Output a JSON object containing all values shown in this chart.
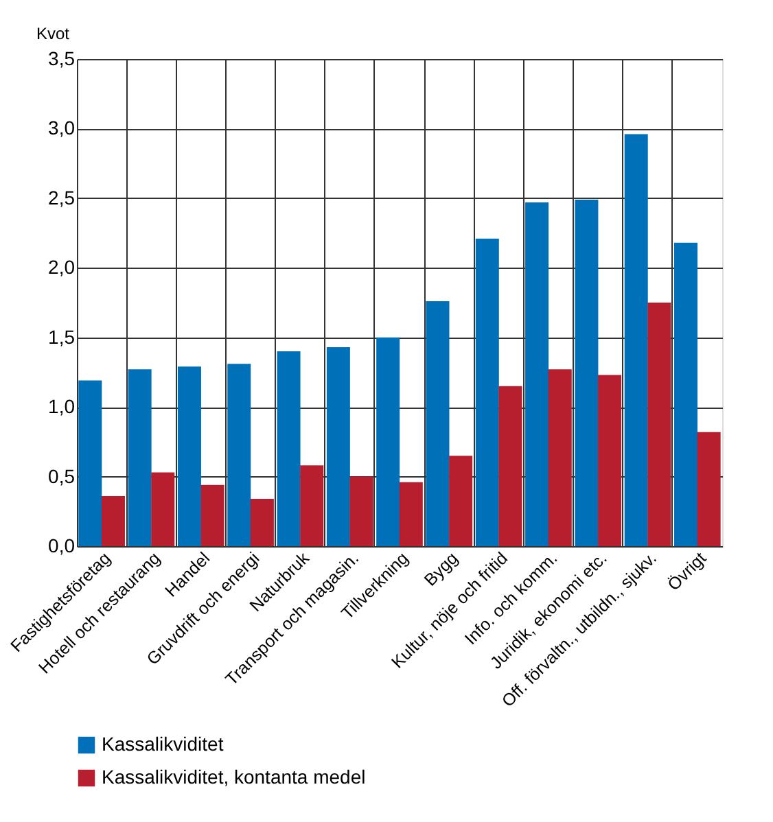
{
  "chart_data": {
    "type": "bar",
    "ylabel": "Kvot",
    "categories": [
      "Fastighetsföretag",
      "Hotell och restaurang",
      "Handel",
      "Gruvdrift och energi",
      "Naturbruk",
      "Transport och magasin.",
      "Tillverkning",
      "Bygg",
      "Kultur, nöje och fritid",
      "Info. och komm.",
      "Juridik, ekonomi etc.",
      "Off. förvaltn., utbildn., sjukv.",
      "Övrigt"
    ],
    "series": [
      {
        "name": "Kassalikviditet",
        "color": "#0070b8",
        "values": [
          1.19,
          1.27,
          1.29,
          1.31,
          1.4,
          1.43,
          1.5,
          1.76,
          2.21,
          2.47,
          2.49,
          2.96,
          2.18
        ]
      },
      {
        "name": "Kassalikviditet, kontanta medel",
        "color": "#b81f2e",
        "values": [
          0.36,
          0.53,
          0.44,
          0.34,
          0.58,
          0.5,
          0.46,
          0.65,
          1.15,
          1.27,
          1.23,
          1.75,
          0.82
        ]
      }
    ],
    "ylim": [
      0,
      3.5
    ],
    "yticks": [
      {
        "value": 0,
        "label": "0,0"
      },
      {
        "value": 0.5,
        "label": "0,5"
      },
      {
        "value": 1,
        "label": "1,0"
      },
      {
        "value": 1.5,
        "label": "1,5"
      },
      {
        "value": 2,
        "label": "2,0"
      },
      {
        "value": 2.5,
        "label": "2,5"
      },
      {
        "value": 3,
        "label": "3,0"
      },
      {
        "value": 3.5,
        "label": "3,5"
      }
    ],
    "grid": true,
    "legend": "bottom"
  }
}
